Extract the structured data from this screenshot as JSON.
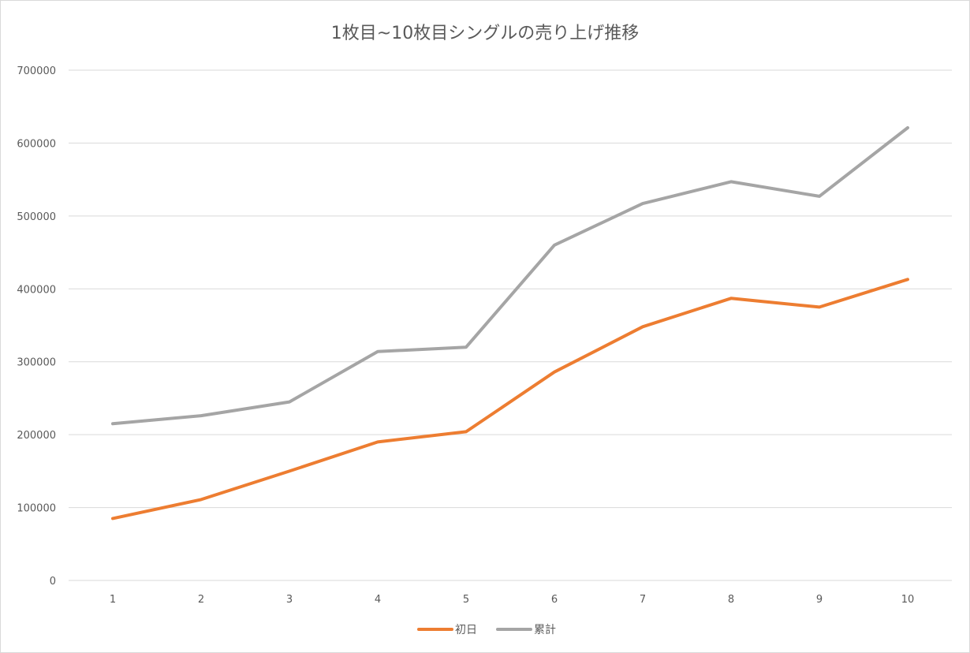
{
  "chart_data": {
    "type": "line",
    "title": "1枚目~10枚目シングルの売り上げ推移",
    "x": [
      "1",
      "2",
      "3",
      "4",
      "5",
      "6",
      "7",
      "8",
      "9",
      "10"
    ],
    "xlabel": "",
    "ylabel": "",
    "ylim": [
      0,
      700000
    ],
    "yticks": [
      "0",
      "100000",
      "200000",
      "300000",
      "400000",
      "500000",
      "600000",
      "700000"
    ],
    "grid": true,
    "legend_position": "bottom",
    "series": [
      {
        "name": "初日",
        "color": "#ed7d31",
        "values": [
          85000,
          111000,
          150000,
          190000,
          204000,
          286000,
          348000,
          387000,
          375000,
          413000
        ]
      },
      {
        "name": "累計",
        "color": "#a5a5a5",
        "values": [
          215000,
          226000,
          245000,
          314000,
          320000,
          460000,
          517000,
          547000,
          527000,
          621000
        ]
      }
    ]
  }
}
